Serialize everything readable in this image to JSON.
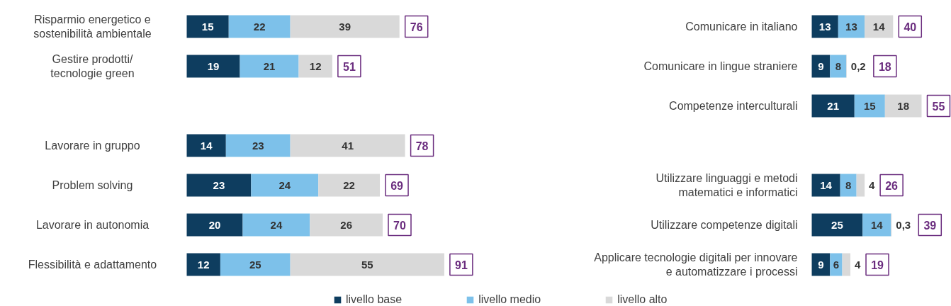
{
  "chart_data": [
    {
      "type": "bar",
      "orientation": "horizontal",
      "stacked": true,
      "legend": "bottom",
      "tick_labels": "y",
      "categories": [
        "Risparmio energetico e\nsostenibilità ambientale",
        "Gestire prodotti/\ntecnologie green",
        null,
        "Lavorare in gruppo",
        "Problem solving",
        "Lavorare in autonomia",
        "Flessibilità e adattamento"
      ],
      "series": [
        {
          "name": "livello base",
          "color": "#0e3d5f",
          "values": [
            15,
            19,
            null,
            14,
            23,
            20,
            12
          ],
          "value_labels": [
            "15",
            "19",
            null,
            "14",
            "23",
            "20",
            "12"
          ]
        },
        {
          "name": "livello medio",
          "color": "#7dc1ea",
          "values": [
            22,
            21,
            null,
            23,
            24,
            24,
            25
          ],
          "value_labels": [
            "22",
            "21",
            null,
            "23",
            "24",
            "24",
            "25"
          ]
        },
        {
          "name": "livello alto",
          "color": "#d9d9d9",
          "values": [
            39,
            12,
            null,
            41,
            22,
            26,
            55
          ],
          "value_labels": [
            "39",
            "12",
            null,
            "41",
            "22",
            "26",
            "55"
          ]
        }
      ],
      "totals": [
        "76",
        "51",
        null,
        "78",
        "69",
        "70",
        "91"
      ]
    },
    {
      "type": "bar",
      "orientation": "horizontal",
      "stacked": true,
      "tick_labels": "y",
      "categories": [
        "Comunicare in italiano",
        "Comunicare in lingue straniere",
        "Competenze interculturali",
        null,
        "Utilizzare linguaggi e metodi\nmatematici e informatici",
        "Utilizzare competenze digitali",
        "Applicare tecnologie digitali per innovare\ne automatizzare i processi"
      ],
      "series": [
        {
          "color": "#0e3d5f",
          "values": [
            13,
            9,
            21,
            null,
            14,
            25,
            9
          ],
          "value_labels": [
            "13",
            "9",
            "21",
            null,
            "14",
            "25",
            "9"
          ]
        },
        {
          "color": "#7dc1ea",
          "values": [
            13,
            8,
            15,
            null,
            8,
            14,
            6
          ],
          "value_labels": [
            "13",
            "8",
            "15",
            null,
            "8",
            "14",
            "6"
          ]
        },
        {
          "color": "#d9d9d9",
          "values": [
            14,
            0.2,
            18,
            null,
            4,
            0.3,
            4
          ],
          "value_labels": [
            "14",
            "0,2",
            "18",
            null,
            "4",
            "0,3",
            "4"
          ]
        }
      ],
      "totals": [
        "40",
        "18",
        "55",
        null,
        "26",
        "39",
        "19"
      ]
    }
  ]
}
